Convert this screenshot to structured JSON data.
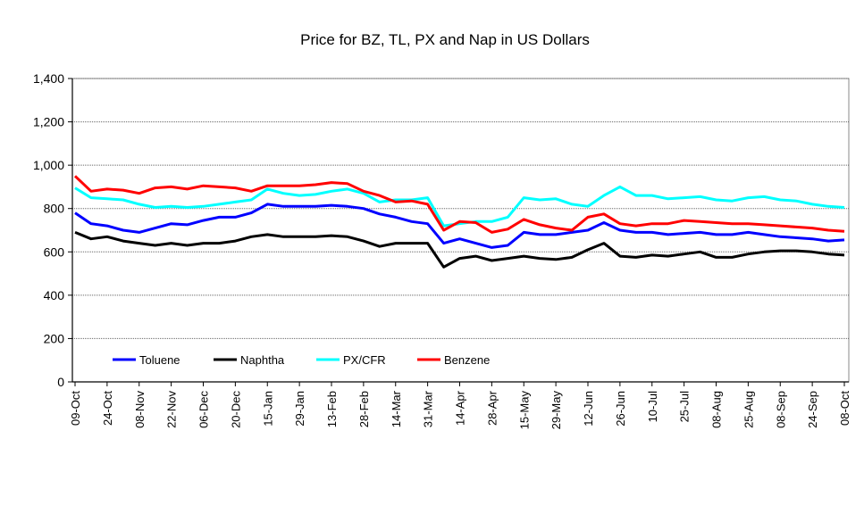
{
  "chart_data": {
    "type": "line",
    "title": "Price for BZ, TL, PX and Nap in US Dollars",
    "xlabel": "",
    "ylabel": "",
    "ylim": [
      0,
      1400
    ],
    "yticks": [
      "0",
      "200",
      "400",
      "600",
      "800",
      "1,000",
      "1,200",
      "1,400"
    ],
    "ytick_values": [
      0,
      200,
      400,
      600,
      800,
      1000,
      1200,
      1400
    ],
    "grid": true,
    "legend_position": "bottom-left inside",
    "x_tick_labels": [
      "09-Oct",
      "24-Oct",
      "08-Nov",
      "22-Nov",
      "06-Dec",
      "20-Dec",
      "15-Jan",
      "29-Jan",
      "13-Feb",
      "28-Feb",
      "14-Mar",
      "31-Mar",
      "14-Apr",
      "28-Apr",
      "15-May",
      "29-May",
      "12-Jun",
      "26-Jun",
      "10-Jul",
      "25-Jul",
      "08-Aug",
      "25-Aug",
      "08-Sep",
      "24-Sep",
      "08-Oct"
    ],
    "points_per_tick_interval": 2,
    "series": [
      {
        "name": "Toluene",
        "color": "#0000ff",
        "values": [
          780,
          730,
          720,
          700,
          690,
          710,
          730,
          725,
          745,
          760,
          760,
          780,
          820,
          810,
          810,
          810,
          815,
          810,
          800,
          775,
          760,
          740,
          730,
          640,
          660,
          640,
          620,
          630,
          690,
          680,
          680,
          690,
          700,
          735,
          700,
          690,
          690,
          680,
          685,
          690,
          680,
          680,
          690,
          680,
          670,
          665,
          660,
          650,
          655
        ]
      },
      {
        "name": "Naphtha",
        "color": "#000000",
        "values": [
          690,
          660,
          670,
          650,
          640,
          630,
          640,
          630,
          640,
          640,
          650,
          670,
          680,
          670,
          670,
          670,
          675,
          670,
          650,
          625,
          640,
          640,
          640,
          530,
          570,
          580,
          560,
          570,
          580,
          570,
          565,
          575,
          610,
          640,
          580,
          575,
          585,
          580,
          590,
          600,
          575,
          575,
          590,
          600,
          605,
          605,
          600,
          590,
          585
        ]
      },
      {
        "name": "PX/CFR",
        "color": "#00ffff",
        "values": [
          895,
          850,
          845,
          840,
          820,
          805,
          810,
          805,
          810,
          820,
          830,
          840,
          890,
          870,
          860,
          865,
          880,
          890,
          870,
          830,
          840,
          840,
          850,
          720,
          730,
          740,
          740,
          760,
          850,
          840,
          845,
          820,
          810,
          860,
          900,
          860,
          860,
          845,
          850,
          855,
          840,
          835,
          850,
          855,
          840,
          835,
          820,
          810,
          805
        ]
      },
      {
        "name": "Benzene",
        "color": "#ff0000",
        "values": [
          950,
          880,
          890,
          885,
          870,
          895,
          900,
          890,
          905,
          900,
          895,
          880,
          905,
          905,
          905,
          910,
          920,
          915,
          880,
          860,
          830,
          835,
          820,
          700,
          740,
          735,
          690,
          705,
          750,
          725,
          710,
          700,
          760,
          775,
          730,
          720,
          730,
          730,
          745,
          740,
          735,
          730,
          730,
          725,
          720,
          715,
          710,
          700,
          695
        ]
      }
    ]
  }
}
